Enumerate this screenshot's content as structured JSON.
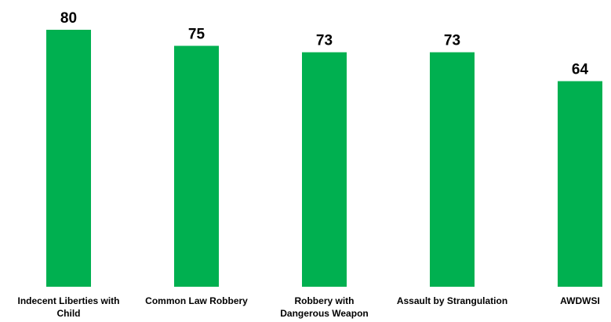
{
  "chart_data": {
    "type": "bar",
    "categories": [
      [
        "Indecent Liberties with",
        "Child"
      ],
      [
        "Common Law Robbery"
      ],
      [
        "Robbery with",
        "Dangerous Weapon"
      ],
      [
        "Assault by Strangulation"
      ],
      [
        "AWDWSI"
      ]
    ],
    "values": [
      80,
      75,
      73,
      73,
      64
    ],
    "data_labels": [
      "80",
      "75",
      "73",
      "73",
      "64"
    ],
    "title": "",
    "xlabel": "",
    "ylabel": "",
    "ylim": [
      0,
      80
    ],
    "grid": false,
    "legend": "none",
    "bar_color": "#00b050"
  }
}
